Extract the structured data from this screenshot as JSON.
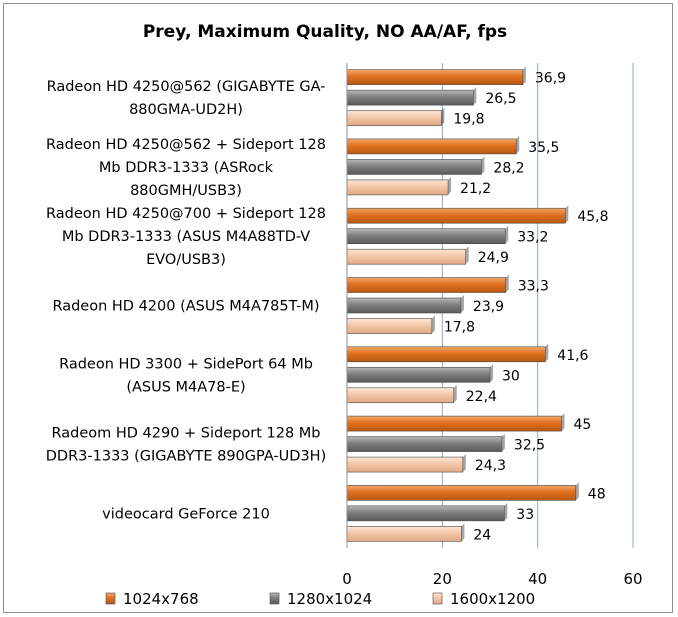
{
  "chart_data": {
    "type": "bar",
    "orientation": "horizontal",
    "title": "Prey, Maximum Quality, NO AA/AF, fps",
    "categories": [
      [
        "Radeon HD 4250@562 (GIGABYTE GA-",
        "880GMA-UD2H)"
      ],
      [
        "Radeon HD 4250@562 + Sideport 128",
        "Mb DDR3-1333 (ASRock",
        "880GMH/USB3)"
      ],
      [
        "Radeon HD 4250@700 + Sideport 128",
        "Mb DDR3-1333 (ASUS M4A88TD-V",
        "EVO/USB3)"
      ],
      [
        "Radeon HD 4200 (ASUS M4A785T-M)"
      ],
      [
        "Radeon HD 3300 + SidePort 64 Mb",
        "(ASUS M4A78-E)"
      ],
      [
        "Radeom HD 4290 + Sideport 128 Mb",
        "DDR3-1333 (GIGABYTE 890GPA-UD3H)"
      ],
      [
        "videocard GeForce 210"
      ]
    ],
    "series": [
      {
        "name": "1024x768",
        "color": "#E07020",
        "values": [
          36.9,
          35.5,
          45.8,
          33.3,
          41.6,
          45,
          48
        ],
        "labels": [
          "36,9",
          "35,5",
          "45,8",
          "33,3",
          "41,6",
          "45",
          "48"
        ]
      },
      {
        "name": "1280x1024",
        "color": "#7F7F7F",
        "values": [
          26.5,
          28.2,
          33.2,
          23.9,
          30,
          32.5,
          33
        ],
        "labels": [
          "26,5",
          "28,2",
          "33,2",
          "23,9",
          "30",
          "32,5",
          "33"
        ]
      },
      {
        "name": "1600x1200",
        "color": "#F4C8A8",
        "values": [
          19.8,
          21.2,
          24.9,
          17.8,
          22.4,
          24.3,
          24
        ],
        "labels": [
          "19,8",
          "21,2",
          "24,9",
          "17,8",
          "22,4",
          "24,3",
          "24"
        ]
      }
    ],
    "xlim": [
      0,
      60
    ],
    "xticks": [
      "0",
      "20",
      "40",
      "60"
    ],
    "grid": true,
    "legend": "bottom"
  }
}
